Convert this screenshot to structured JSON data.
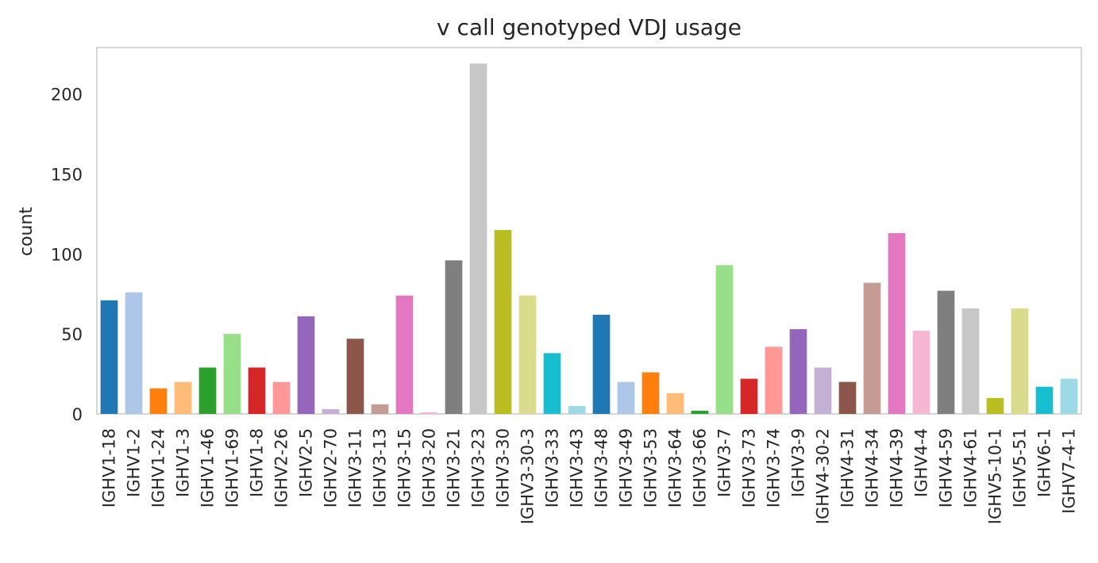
{
  "chart_data": {
    "type": "bar",
    "title": "v call genotyped VDJ usage",
    "xlabel": "",
    "ylabel": "count",
    "ylim": [
      0,
      229
    ],
    "yticks": [
      0,
      50,
      100,
      150,
      200
    ],
    "grid": false,
    "categories": [
      "IGHV1-18",
      "IGHV1-2",
      "IGHV1-24",
      "IGHV1-3",
      "IGHV1-46",
      "IGHV1-69",
      "IGHV1-8",
      "IGHV2-26",
      "IGHV2-5",
      "IGHV2-70",
      "IGHV3-11",
      "IGHV3-13",
      "IGHV3-15",
      "IGHV3-20",
      "IGHV3-21",
      "IGHV3-23",
      "IGHV3-30",
      "IGHV3-30-3",
      "IGHV3-33",
      "IGHV3-43",
      "IGHV3-48",
      "IGHV3-49",
      "IGHV3-53",
      "IGHV3-64",
      "IGHV3-66",
      "IGHV3-7",
      "IGHV3-73",
      "IGHV3-74",
      "IGHV3-9",
      "IGHV4-30-2",
      "IGHV4-31",
      "IGHV4-34",
      "IGHV4-39",
      "IGHV4-4",
      "IGHV4-59",
      "IGHV4-61",
      "IGHV5-10-1",
      "IGHV5-51",
      "IGHV6-1",
      "IGHV7-4-1"
    ],
    "values": [
      71,
      76,
      16,
      20,
      29,
      50,
      29,
      20,
      61,
      3,
      47,
      6,
      74,
      1,
      96,
      219,
      115,
      74,
      38,
      5,
      62,
      20,
      26,
      13,
      2,
      93,
      22,
      42,
      53,
      29,
      20,
      82,
      113,
      52,
      77,
      66,
      10,
      66,
      17,
      22
    ],
    "colors": [
      "#1f77b4",
      "#aec7e8",
      "#ff7f0e",
      "#ffbb78",
      "#2ca02c",
      "#98df8a",
      "#d62728",
      "#ff9896",
      "#9467bd",
      "#c5b0d5",
      "#8c564b",
      "#c49c94",
      "#e377c2",
      "#f7b6d2",
      "#7f7f7f",
      "#c7c7c7",
      "#bcbd22",
      "#dbdb8d",
      "#17becf",
      "#9edae5"
    ]
  }
}
